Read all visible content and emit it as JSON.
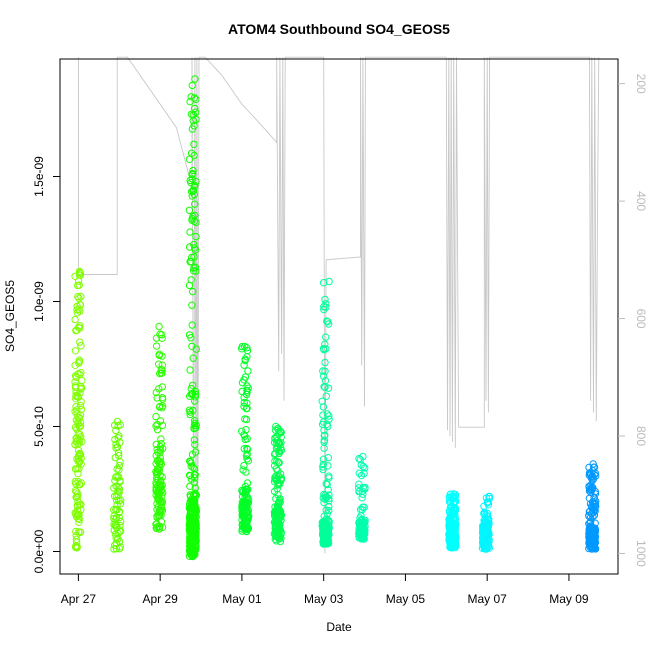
{
  "chart_data": {
    "type": "scatter",
    "title": "ATOM4 Southbound SO4_GEOS5",
    "xlabel": "Date",
    "ylabel": "SO4_GEOS5",
    "x_tick_labels": [
      "Apr 27",
      "Apr 29",
      "May 01",
      "May 03",
      "May 05",
      "May 07",
      "May 09"
    ],
    "x_tick_days": [
      27,
      29,
      31,
      33,
      35,
      37,
      39
    ],
    "xlim_days": [
      26.55,
      40.2
    ],
    "y_tick_labels": [
      "0.0e+00",
      "5.0e-10",
      "1.0e-09",
      "1.5e-09"
    ],
    "y_tick_values": [
      0,
      5e-10,
      1e-09,
      1.5e-09
    ],
    "ylim": [
      -9e-11,
      1.97e-09
    ],
    "right_axis": {
      "quantity": "pressure",
      "tick_labels": [
        "200",
        "400",
        "600",
        "800",
        "1000"
      ],
      "tick_values": [
        200,
        400,
        600,
        800,
        1000
      ],
      "range": [
        1035,
        158
      ]
    },
    "series": [
      {
        "color": "#7fff00",
        "day": 27.0,
        "ymin": 1.5e-11,
        "ymax": 1.12e-09,
        "ymid": 5.5e-10,
        "points": 140
      },
      {
        "color": "#66ff00",
        "day": 27.95,
        "ymin": 1e-11,
        "ymax": 5.2e-10,
        "ymid": 2.3e-10,
        "points": 70
      },
      {
        "color": "#2bff00",
        "day": 28.98,
        "ymin": 9e-11,
        "ymax": 9e-10,
        "ymid": 3.5e-10,
        "points": 130
      },
      {
        "color": "#11ff00",
        "day": 29.8,
        "ymin": -2e-11,
        "ymax": 1.89e-09,
        "ymid": 2e-10,
        "points": 320
      },
      {
        "color": "#00ff26",
        "day": 31.08,
        "ymin": 8e-11,
        "ymax": 8.2e-10,
        "ymid": 2e-10,
        "points": 140
      },
      {
        "color": "#00ff4c",
        "day": 31.88,
        "ymin": 4e-11,
        "ymax": 5e-10,
        "ymid": 1.6e-10,
        "points": 150
      },
      {
        "color": "#00ff99",
        "day": 33.05,
        "ymin": 3e-11,
        "ymax": 1.08e-09,
        "ymid": 1.3e-10,
        "points": 160
      },
      {
        "color": "#00ffad",
        "day": 33.93,
        "ymin": 5e-11,
        "ymax": 3.8e-10,
        "ymid": 1.2e-10,
        "points": 80
      },
      {
        "color": "#00ffff",
        "day": 36.15,
        "ymin": 1.5e-11,
        "ymax": 2.3e-10,
        "ymid": 1e-10,
        "points": 180
      },
      {
        "color": "#00f5ff",
        "day": 36.97,
        "ymin": 1e-11,
        "ymax": 2.2e-10,
        "ymid": 1e-10,
        "points": 110
      },
      {
        "color": "#0099ff",
        "day": 39.57,
        "ymin": 1e-11,
        "ymax": 3.5e-10,
        "ymid": 9e-11,
        "points": 170
      }
    ],
    "pressure_trace": {
      "color": "#c8c8c8",
      "points": [
        [
          27.0,
          155
        ],
        [
          27.0,
          525
        ],
        [
          27.05,
          525
        ],
        [
          27.92,
          525
        ],
        [
          27.95,
          525
        ],
        [
          27.95,
          155
        ],
        [
          28.2,
          155
        ],
        [
          29.4,
          275
        ],
        [
          29.7,
          355
        ],
        [
          29.78,
          355
        ],
        [
          29.78,
          155
        ],
        [
          29.82,
          1000
        ],
        [
          29.85,
          155
        ],
        [
          29.88,
          1000
        ],
        [
          29.9,
          155
        ],
        [
          29.92,
          1000
        ],
        [
          29.95,
          155
        ],
        [
          30.1,
          155
        ],
        [
          30.5,
          185
        ],
        [
          31.0,
          235
        ],
        [
          31.4,
          265
        ],
        [
          31.85,
          300
        ],
        [
          31.85,
          155
        ],
        [
          31.9,
          690
        ],
        [
          31.93,
          155
        ],
        [
          31.97,
          660
        ],
        [
          32.0,
          155
        ],
        [
          32.03,
          740
        ],
        [
          32.06,
          155
        ],
        [
          33.0,
          155
        ],
        [
          33.03,
          1000
        ],
        [
          33.06,
          500
        ],
        [
          33.9,
          495
        ],
        [
          33.9,
          155
        ],
        [
          33.93,
          680
        ],
        [
          33.96,
          155
        ],
        [
          34.0,
          750
        ],
        [
          34.02,
          155
        ],
        [
          36.0,
          155
        ],
        [
          36.03,
          790
        ],
        [
          36.06,
          155
        ],
        [
          36.09,
          800
        ],
        [
          36.12,
          155
        ],
        [
          36.15,
          810
        ],
        [
          36.18,
          155
        ],
        [
          36.22,
          820
        ],
        [
          36.25,
          155
        ],
        [
          36.3,
          785
        ],
        [
          36.93,
          785
        ],
        [
          36.93,
          155
        ],
        [
          36.97,
          740
        ],
        [
          37.0,
          155
        ],
        [
          37.03,
          760
        ],
        [
          37.06,
          155
        ],
        [
          39.5,
          155
        ],
        [
          39.53,
          740
        ],
        [
          39.56,
          155
        ],
        [
          39.6,
          760
        ],
        [
          39.63,
          155
        ],
        [
          39.67,
          775
        ],
        [
          39.7,
          395
        ],
        [
          39.73,
          155
        ]
      ]
    }
  }
}
